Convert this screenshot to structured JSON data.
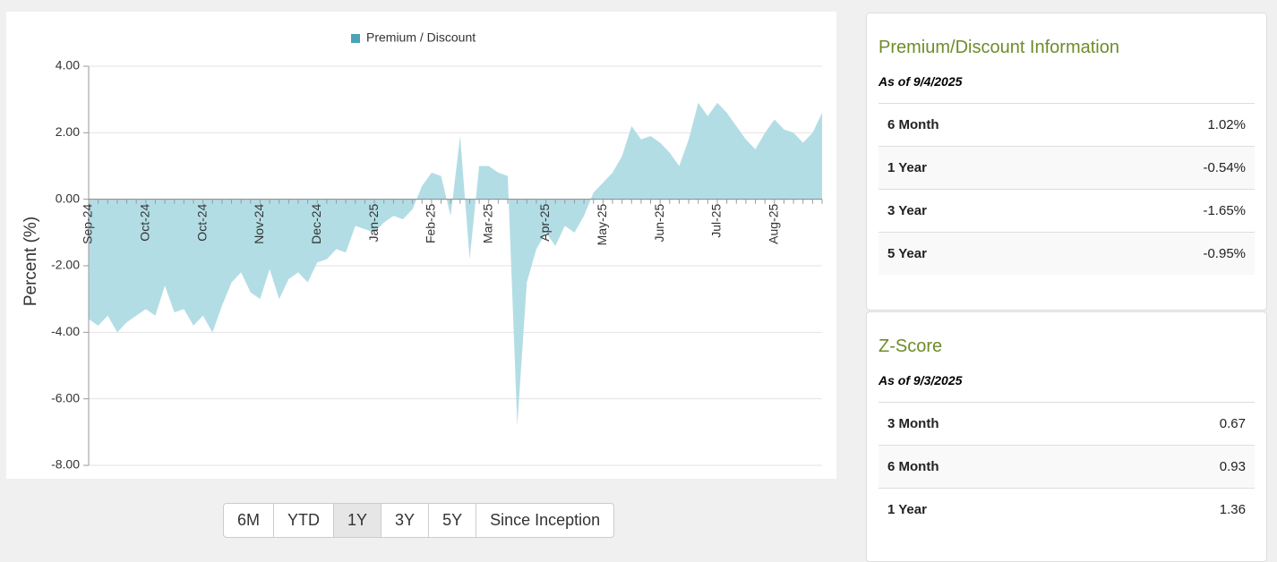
{
  "chart_data": {
    "type": "area",
    "legend": "Premium / Discount",
    "legend_color": "#4aa3b8",
    "color": "#b3dde5",
    "ylabel": "Percent (%)",
    "categories": [
      "Sep-24",
      null,
      null,
      null,
      null,
      null,
      "Oct-24",
      null,
      null,
      null,
      null,
      null,
      "Oct-24",
      null,
      null,
      null,
      null,
      null,
      "Nov-24",
      null,
      null,
      null,
      null,
      null,
      "Dec-24",
      null,
      null,
      null,
      null,
      null,
      "Jan-25",
      null,
      null,
      null,
      null,
      null,
      "Feb-25",
      null,
      null,
      null,
      null,
      null,
      "Mar-25",
      null,
      null,
      null,
      null,
      null,
      "Apr-25",
      null,
      null,
      null,
      null,
      null,
      "May-25",
      null,
      null,
      null,
      null,
      null,
      "Jun-25",
      null,
      null,
      null,
      null,
      null,
      "Jul-25",
      null,
      null,
      null,
      null,
      null,
      "Aug-25",
      null,
      null,
      null,
      null,
      null
    ],
    "values": [
      -3.6,
      -3.8,
      -3.5,
      -4.0,
      -3.7,
      -3.5,
      -3.3,
      -3.5,
      -2.6,
      -3.4,
      -3.3,
      -3.8,
      -3.5,
      -4.0,
      -3.2,
      -2.5,
      -2.2,
      -2.8,
      -3.0,
      -2.1,
      -3.0,
      -2.4,
      -2.2,
      -2.5,
      -1.9,
      -1.8,
      -1.5,
      -1.6,
      -0.8,
      -0.9,
      -1.0,
      -0.7,
      -0.5,
      -0.6,
      -0.3,
      0.4,
      0.8,
      0.7,
      -0.5,
      1.9,
      -1.8,
      1.0,
      1.0,
      0.8,
      0.7,
      -6.8,
      -2.5,
      -1.5,
      -1.0,
      -1.4,
      -0.8,
      -1.0,
      -0.5,
      0.2,
      0.5,
      0.8,
      1.3,
      2.2,
      1.8,
      1.9,
      1.7,
      1.4,
      1.0,
      1.8,
      2.9,
      2.5,
      2.9,
      2.6,
      2.2,
      1.8,
      1.5,
      2.0,
      2.4,
      2.1,
      2.0,
      1.7,
      2.0,
      2.6
    ],
    "ylim": [
      -8,
      4
    ],
    "yticks": [
      {
        "value": -8,
        "label": "-8.00"
      },
      {
        "value": -6,
        "label": "-6.00"
      },
      {
        "value": -4,
        "label": "-4.00"
      },
      {
        "value": -2,
        "label": "-2.00"
      },
      {
        "value": 0,
        "label": "0.00"
      },
      {
        "value": 2,
        "label": "2.00"
      },
      {
        "value": 4,
        "label": "4.00"
      }
    ],
    "grid": true
  },
  "buttons": [
    "6M",
    "YTD",
    "1Y",
    "3Y",
    "5Y",
    "Since Inception"
  ],
  "active_button": 2,
  "panels": [
    {
      "title": "Premium/Discount Information",
      "as_of": "As of 9/4/2025",
      "rows": [
        [
          "6 Month",
          "1.02%"
        ],
        [
          "1 Year",
          "-0.54%"
        ],
        [
          "3 Year",
          "-1.65%"
        ],
        [
          "5 Year",
          "-0.95%"
        ]
      ]
    },
    {
      "title": "Z-Score",
      "as_of": "As of 9/3/2025",
      "rows": [
        [
          "3 Month",
          "0.67"
        ],
        [
          "6 Month",
          "0.93"
        ],
        [
          "1 Year",
          "1.36"
        ]
      ]
    }
  ]
}
